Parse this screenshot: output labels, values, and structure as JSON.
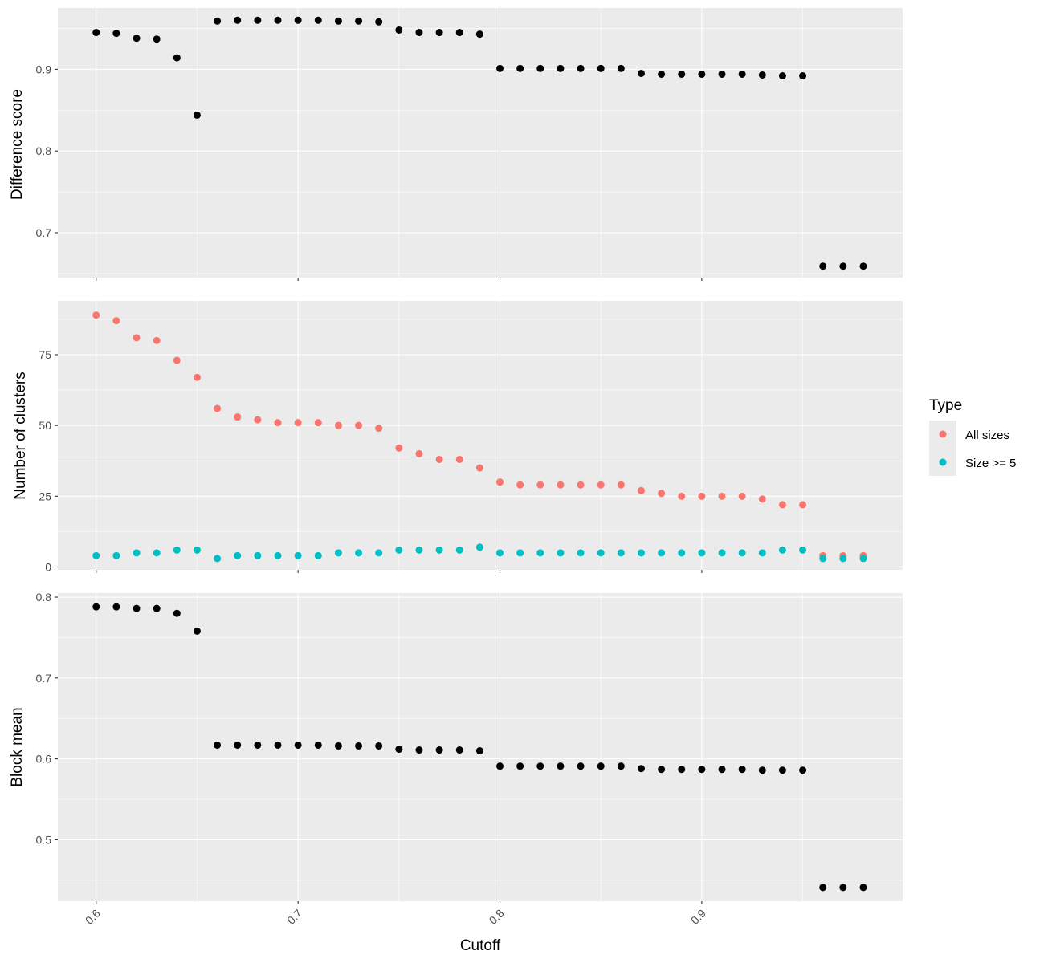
{
  "chart_data": [
    {
      "type": "scatter",
      "panel": "top",
      "xlabel": "",
      "ylabel": "Difference score",
      "yticks": [
        "0.7",
        "0.8",
        "0.9"
      ],
      "ylim": [
        0.645,
        0.975
      ],
      "series": [
        {
          "color": "#000000",
          "x": [
            0.6,
            0.61,
            0.62,
            0.63,
            0.64,
            0.65,
            0.66,
            0.67,
            0.68,
            0.69,
            0.7,
            0.71,
            0.72,
            0.73,
            0.74,
            0.75,
            0.76,
            0.77,
            0.78,
            0.79,
            0.8,
            0.81,
            0.82,
            0.83,
            0.84,
            0.85,
            0.86,
            0.87,
            0.88,
            0.89,
            0.9,
            0.91,
            0.92,
            0.93,
            0.94,
            0.95,
            0.96,
            0.97,
            0.98
          ],
          "values": [
            0.945,
            0.944,
            0.938,
            0.937,
            0.914,
            0.844,
            0.959,
            0.96,
            0.96,
            0.96,
            0.96,
            0.96,
            0.959,
            0.959,
            0.958,
            0.948,
            0.945,
            0.945,
            0.945,
            0.943,
            0.901,
            0.901,
            0.901,
            0.901,
            0.901,
            0.901,
            0.901,
            0.895,
            0.894,
            0.894,
            0.894,
            0.894,
            0.894,
            0.893,
            0.892,
            0.892,
            0.659,
            0.659,
            0.659
          ]
        }
      ]
    },
    {
      "type": "scatter",
      "panel": "middle",
      "xlabel": "",
      "ylabel": "Number of clusters",
      "yticks": [
        "0",
        "25",
        "50",
        "75"
      ],
      "ylim": [
        -1,
        94
      ],
      "legend": {
        "title": "Type",
        "position": "right"
      },
      "series": [
        {
          "name": "All sizes",
          "color": "#F8766D",
          "x": [
            0.6,
            0.61,
            0.62,
            0.63,
            0.64,
            0.65,
            0.66,
            0.67,
            0.68,
            0.69,
            0.7,
            0.71,
            0.72,
            0.73,
            0.74,
            0.75,
            0.76,
            0.77,
            0.78,
            0.79,
            0.8,
            0.81,
            0.82,
            0.83,
            0.84,
            0.85,
            0.86,
            0.87,
            0.88,
            0.89,
            0.9,
            0.91,
            0.92,
            0.93,
            0.94,
            0.95,
            0.96,
            0.97,
            0.98
          ],
          "values": [
            89,
            87,
            81,
            80,
            73,
            67,
            56,
            53,
            52,
            51,
            51,
            51,
            50,
            50,
            49,
            42,
            40,
            38,
            38,
            35,
            30,
            29,
            29,
            29,
            29,
            29,
            29,
            27,
            26,
            25,
            25,
            25,
            25,
            24,
            22,
            22,
            4,
            4,
            4
          ]
        },
        {
          "name": "Size >= 5",
          "color": "#00BFC4",
          "x": [
            0.6,
            0.61,
            0.62,
            0.63,
            0.64,
            0.65,
            0.66,
            0.67,
            0.68,
            0.69,
            0.7,
            0.71,
            0.72,
            0.73,
            0.74,
            0.75,
            0.76,
            0.77,
            0.78,
            0.79,
            0.8,
            0.81,
            0.82,
            0.83,
            0.84,
            0.85,
            0.86,
            0.87,
            0.88,
            0.89,
            0.9,
            0.91,
            0.92,
            0.93,
            0.94,
            0.95,
            0.96,
            0.97,
            0.98
          ],
          "values": [
            4,
            4,
            5,
            5,
            6,
            6,
            3,
            4,
            4,
            4,
            4,
            4,
            5,
            5,
            5,
            6,
            6,
            6,
            6,
            7,
            5,
            5,
            5,
            5,
            5,
            5,
            5,
            5,
            5,
            5,
            5,
            5,
            5,
            5,
            6,
            6,
            3,
            3,
            3
          ]
        }
      ]
    },
    {
      "type": "scatter",
      "panel": "bottom",
      "xlabel": "Cutoff",
      "ylabel": "Block mean",
      "yticks": [
        "0.5",
        "0.6",
        "0.7",
        "0.8"
      ],
      "ylim": [
        0.424,
        0.805
      ],
      "xticks": [
        "0.6",
        "0.7",
        "0.8",
        "0.9"
      ],
      "xlim": [
        0.581,
        0.9995
      ],
      "series": [
        {
          "color": "#000000",
          "x": [
            0.6,
            0.61,
            0.62,
            0.63,
            0.64,
            0.65,
            0.66,
            0.67,
            0.68,
            0.69,
            0.7,
            0.71,
            0.72,
            0.73,
            0.74,
            0.75,
            0.76,
            0.77,
            0.78,
            0.79,
            0.8,
            0.81,
            0.82,
            0.83,
            0.84,
            0.85,
            0.86,
            0.87,
            0.88,
            0.89,
            0.9,
            0.91,
            0.92,
            0.93,
            0.94,
            0.95,
            0.96,
            0.97,
            0.98
          ],
          "values": [
            0.788,
            0.788,
            0.786,
            0.786,
            0.78,
            0.758,
            0.617,
            0.617,
            0.617,
            0.617,
            0.617,
            0.617,
            0.616,
            0.616,
            0.616,
            0.612,
            0.611,
            0.611,
            0.611,
            0.61,
            0.591,
            0.591,
            0.591,
            0.591,
            0.591,
            0.591,
            0.591,
            0.588,
            0.587,
            0.587,
            0.587,
            0.587,
            0.587,
            0.586,
            0.586,
            0.586,
            0.441,
            0.441,
            0.441
          ]
        }
      ]
    }
  ],
  "style": {
    "panel_background": "#EBEBEB",
    "grid_color": "#FFFFFF",
    "tick_color": "#333333"
  }
}
